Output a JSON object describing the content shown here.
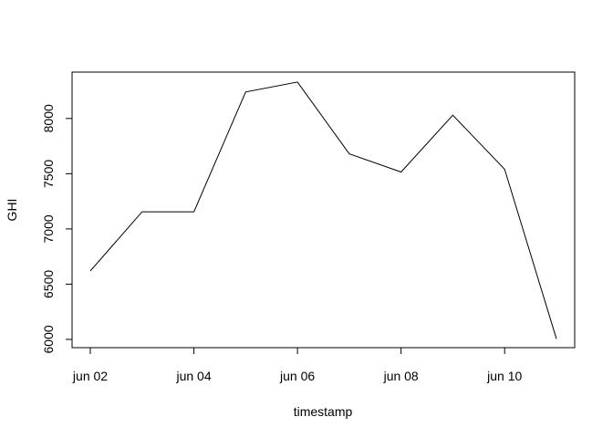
{
  "chart_data": {
    "type": "line",
    "title": "",
    "xlabel": "timestamp",
    "ylabel": "GHI",
    "x": [
      "jun 02",
      "jun 03",
      "jun 04",
      "jun 05",
      "jun 06",
      "jun 07",
      "jun 08",
      "jun 09",
      "jun 10",
      "jun 11"
    ],
    "x_tick_labels": [
      "jun 02",
      "jun 04",
      "jun 06",
      "jun 08",
      "jun 10"
    ],
    "y_ticks": [
      6000,
      6500,
      7000,
      7500,
      8000
    ],
    "ylim": [
      5925,
      8420
    ],
    "series": [
      {
        "values": [
          6620,
          7155,
          7155,
          8240,
          8330,
          7680,
          7515,
          8030,
          7540,
          6005
        ]
      }
    ],
    "grid": false,
    "line_color": "#000000"
  }
}
